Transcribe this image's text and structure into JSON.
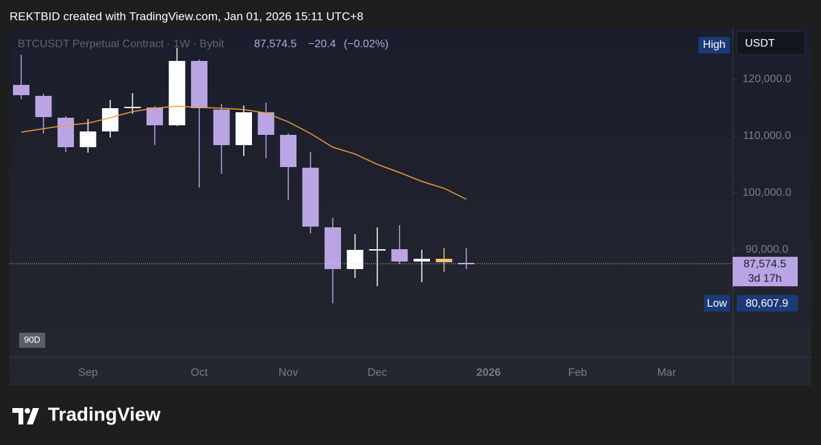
{
  "header": "REKTBID created with TradingView.com, Jan 01, 2026 15:11 UTC+8",
  "branding": "TradingView",
  "chart_data": {
    "type": "candlestick",
    "title": "BTCUSDT Perpetual Contract · 1W · Bybit",
    "currency": "USDT",
    "range_button": "90D",
    "high_label": "High",
    "last_price": {
      "value": 87574.5,
      "label": "87,574.5"
    },
    "countdown": "3d 17h",
    "change": {
      "value": -20.4,
      "label": "−20.4"
    },
    "change_percent": {
      "value": -0.02,
      "label": "(−0.02%)"
    },
    "low_marker": {
      "name": "Low",
      "value": 80607.9,
      "label": "80,607.9"
    },
    "categories": [
      null,
      null,
      null,
      "Sep",
      null,
      null,
      null,
      null,
      "Oct",
      null,
      null,
      null,
      "Nov",
      null,
      null,
      null,
      "Dec",
      null,
      null,
      null,
      null,
      "2026",
      null,
      null,
      null,
      "Feb",
      null,
      null,
      null,
      "Mar",
      null,
      null
    ],
    "open": [
      119036,
      117108,
      113253,
      108072,
      110843,
      114940,
      115060,
      111928,
      123253,
      114699,
      108434,
      114217,
      110241,
      104458,
      93976,
      86627,
      89880,
      90120,
      87952,
      88434,
      87711,
      null,
      null,
      null,
      null,
      null,
      null,
      null,
      null,
      null,
      null,
      null
    ],
    "high": [
      124337,
      117470,
      113494,
      113012,
      116386,
      117590,
      115301,
      125542,
      123494,
      115663,
      115422,
      115904,
      110482,
      107229,
      95663,
      92771,
      93976,
      94337,
      90000,
      90361,
      90361,
      null,
      null,
      null,
      null,
      null,
      null,
      null,
      null,
      null,
      null,
      null
    ],
    "low": [
      116506,
      110482,
      107229,
      107108,
      109759,
      113976,
      108434,
      111807,
      100964,
      103373,
      106506,
      106145,
      98795,
      92892,
      80607.9,
      85060,
      83614,
      87470,
      84337,
      86145,
      86627,
      null,
      null,
      null,
      null,
      null,
      null,
      null,
      null,
      null,
      null,
      null
    ],
    "close": [
      117229,
      113373,
      108072,
      110843,
      114940,
      115181,
      111928,
      123253,
      114940,
      108434,
      114217,
      110241,
      104578,
      94096,
      86627,
      90000,
      90120,
      87952,
      88434,
      87831,
      87574.5,
      null,
      null,
      null,
      null,
      null,
      null,
      null,
      null,
      null,
      null,
      null
    ],
    "candle_colors": [
      "#b9a5e3",
      "#b9a5e3",
      "#b9a5e3",
      "#ffffff",
      "#ffffff",
      "#ffffff",
      "#b9a5e3",
      "#ffffff",
      "#b9a5e3",
      "#b9a5e3",
      "#ffffff",
      "#b9a5e3",
      "#b9a5e3",
      "#b9a5e3",
      "#b9a5e3",
      "#ffffff",
      "#ffffff",
      "#b9a5e3",
      "#ffffff",
      "#f3c07a",
      "#b9a5e3",
      null,
      null,
      null,
      null,
      null,
      null,
      null,
      null,
      null,
      null,
      null
    ],
    "moving_average": {
      "color": "#f29d38",
      "values": [
        110723,
        111325,
        111928,
        112289,
        113253,
        114337,
        114940,
        115301,
        115060,
        114940,
        114699,
        114096,
        112530,
        110482,
        108072,
        106868,
        105060,
        103614,
        102048,
        100843,
        98916,
        null,
        null,
        null,
        null,
        null,
        null,
        null,
        null,
        null,
        null,
        null
      ]
    },
    "ylim": [
      71084,
      129157
    ],
    "yticks": [
      {
        "value": 90000,
        "label": "90,000.0"
      },
      {
        "value": 100000,
        "label": "100,000.0"
      },
      {
        "value": 110000,
        "label": "110,000.0"
      },
      {
        "value": 120000,
        "label": "120,000.0"
      }
    ]
  }
}
